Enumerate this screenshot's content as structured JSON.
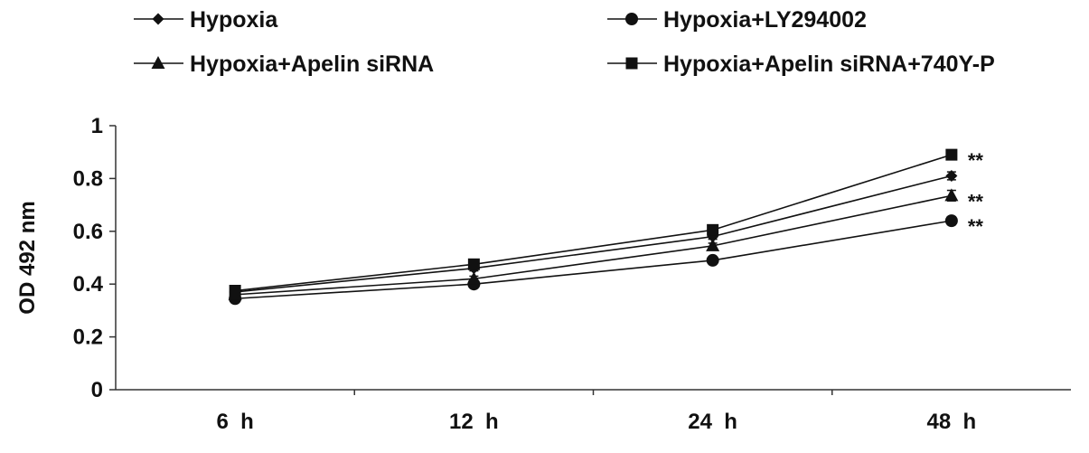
{
  "chart_data": {
    "type": "line",
    "title": "",
    "xlabel": "",
    "ylabel": "OD 492 nm",
    "categories": [
      "6 h",
      "12 h",
      "24 h",
      "48 h"
    ],
    "ylim": [
      0,
      1
    ],
    "yticks": [
      "0",
      "0.2",
      "0.4",
      "0.6",
      "0.8",
      "1"
    ],
    "grid": false,
    "legend_position": "top",
    "series": [
      {
        "name": "Hypoxia",
        "marker": "diamond",
        "values": [
          0.37,
          0.46,
          0.58,
          0.81
        ],
        "errors": [
          0.01,
          0.01,
          0.01,
          0.015
        ]
      },
      {
        "name": "Hypoxia+LY294002",
        "marker": "circle",
        "values": [
          0.345,
          0.4,
          0.49,
          0.64
        ],
        "errors": [
          0.01,
          0.01,
          0.01,
          0.015
        ],
        "annotation": "**"
      },
      {
        "name": "Hypoxia+Apelin siRNA",
        "marker": "triangle",
        "values": [
          0.36,
          0.42,
          0.545,
          0.735
        ],
        "errors": [
          0.01,
          0.01,
          0.01,
          0.02
        ],
        "annotation": "**"
      },
      {
        "name": "Hypoxia+Apelin siRNA+740Y-P",
        "marker": "square",
        "values": [
          0.375,
          0.475,
          0.605,
          0.89
        ],
        "errors": [
          0.01,
          0.01,
          0.01,
          0.015
        ],
        "annotation": "**"
      }
    ],
    "colors": {
      "line": "#111111",
      "axis": "#333333"
    }
  }
}
